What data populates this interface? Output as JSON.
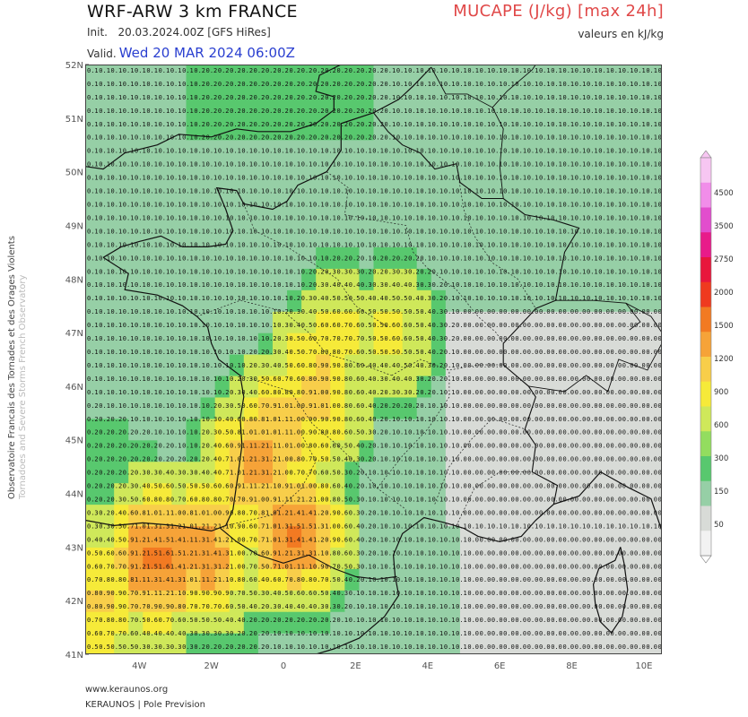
{
  "header": {
    "model_title": "WRF-ARW 3 km FRANCE",
    "init_label": "Init.",
    "init_value": "20.03.2024.00Z [GFS HiRes]",
    "valid_label": "Valid.",
    "valid_value": "Wed 20 MAR 2024 06:00Z",
    "parameter": "MUCAPE (J/kg) [max 24h]",
    "units_note": "valeurs en kJ/kg"
  },
  "axes": {
    "lat_labels": [
      "52N",
      "51N",
      "50N",
      "49N",
      "48N",
      "47N",
      "46N",
      "45N",
      "44N",
      "43N",
      "42N",
      "41N"
    ],
    "lon_labels": [
      "4W",
      "2W",
      "0",
      "2E",
      "4E",
      "6E",
      "8E",
      "10E"
    ],
    "lon_ticks": [
      "5.5W",
      "4W",
      "2W",
      "0",
      "2E",
      "4E",
      "6E",
      "8E",
      "10E",
      "10.5E"
    ]
  },
  "legend": {
    "ticks": [
      "4500",
      "3500",
      "2750",
      "2000",
      "1500",
      "1200",
      "900",
      "600",
      "300",
      "150",
      "50"
    ],
    "colors": [
      "#f7c6f2",
      "#f18de9",
      "#e24dcd",
      "#e81b8a",
      "#e8163c",
      "#ef3a1f",
      "#f27a22",
      "#f6a338",
      "#f8ce4a",
      "#f6ea39",
      "#cfe85a",
      "#93dd5f",
      "#58c86e",
      "#96cfa6",
      "#d8dbd7",
      "#f2f2f2"
    ]
  },
  "credits": {
    "vertical_line1": "Observatoire Francais des Tornades et des Orages Violents",
    "vertical_line2": "Tornadoes and Severe Storms French Observatory",
    "website": "www.keraunos.org",
    "org": "KERAUNOS | Pole Prevision"
  },
  "map_data": {
    "extent": {
      "lon_min": -5.5,
      "lon_max": 10.5,
      "lat_min": 41,
      "lat_max": 52
    },
    "grid_spacing_deg": 0.4,
    "value_hotspots": [
      {
        "lon": -3.5,
        "lat": 42.8,
        "value": 1.6
      },
      {
        "lon": -2.2,
        "lat": 42.9,
        "value": 1.4
      },
      {
        "lon": -0.8,
        "lat": 44.5,
        "value": 1.3
      },
      {
        "lon": 0.3,
        "lat": 43.3,
        "value": 1.5
      },
      {
        "lon": 0.9,
        "lat": 45.7,
        "value": 1.0
      },
      {
        "lon": -0.1,
        "lat": 45.2,
        "value": 1.1
      },
      {
        "lon": -5.0,
        "lat": 42.0,
        "value": 0.9
      },
      {
        "lon": 1.5,
        "lat": 46.9,
        "value": 0.7
      },
      {
        "lon": 3.0,
        "lat": 47.0,
        "value": 0.6
      },
      {
        "lon": 1.0,
        "lat": 46.3,
        "value": 0.9
      }
    ],
    "value_bands": [
      {
        "min": 0.0,
        "max": 0.05,
        "fill": "#d8dbd7"
      },
      {
        "min": 0.05,
        "max": 0.15,
        "fill": "#96cfa6"
      },
      {
        "min": 0.15,
        "max": 0.3,
        "fill": "#58c86e"
      },
      {
        "min": 0.3,
        "max": 0.6,
        "fill": "#cfe85a"
      },
      {
        "min": 0.6,
        "max": 0.9,
        "fill": "#f6ea39"
      },
      {
        "min": 0.9,
        "max": 1.2,
        "fill": "#f8ce4a"
      },
      {
        "min": 1.2,
        "max": 1.5,
        "fill": "#f6a338"
      },
      {
        "min": 1.5,
        "max": 2.0,
        "fill": "#f27a22"
      }
    ],
    "coastline_lonlat": [
      [
        -5.0,
        48.4
      ],
      [
        -4.5,
        48.6
      ],
      [
        -4.0,
        48.7
      ],
      [
        -3.4,
        48.8
      ],
      [
        -2.8,
        48.6
      ],
      [
        -2.1,
        48.6
      ],
      [
        -1.6,
        48.65
      ],
      [
        -1.4,
        48.9
      ],
      [
        -1.6,
        49.3
      ],
      [
        -1.85,
        49.7
      ],
      [
        -1.3,
        49.65
      ],
      [
        -1.1,
        49.4
      ],
      [
        -0.3,
        49.3
      ],
      [
        0.1,
        49.45
      ],
      [
        0.4,
        49.75
      ],
      [
        1.2,
        50.0
      ],
      [
        1.6,
        50.4
      ],
      [
        1.6,
        50.9
      ],
      [
        2.5,
        51.1
      ],
      [
        2.5,
        51.1
      ],
      [
        3.2,
        51.35
      ],
      [
        3.6,
        51.6
      ],
      [
        4.1,
        51.95
      ]
    ],
    "atlantic_coast_lonlat": [
      [
        -5.0,
        48.4
      ],
      [
        -4.3,
        48.1
      ],
      [
        -4.4,
        47.8
      ],
      [
        -3.5,
        47.7
      ],
      [
        -2.8,
        47.5
      ],
      [
        -2.4,
        47.3
      ],
      [
        -2.1,
        47.1
      ],
      [
        -2.0,
        46.8
      ],
      [
        -1.8,
        46.5
      ],
      [
        -1.2,
        46.2
      ],
      [
        -1.1,
        45.8
      ],
      [
        -1.2,
        45.4
      ],
      [
        -1.15,
        44.9
      ],
      [
        -1.25,
        44.4
      ],
      [
        -1.4,
        43.7
      ],
      [
        -1.6,
        43.4
      ],
      [
        -2.0,
        43.3
      ],
      [
        -3.0,
        43.4
      ],
      [
        -3.9,
        43.45
      ],
      [
        -4.7,
        43.4
      ],
      [
        -5.5,
        43.5
      ]
    ],
    "med_coast_lonlat": [
      [
        3.1,
        42.45
      ],
      [
        3.05,
        42.85
      ],
      [
        3.3,
        43.25
      ],
      [
        3.9,
        43.55
      ],
      [
        4.5,
        43.45
      ],
      [
        5.0,
        43.35
      ],
      [
        5.4,
        43.2
      ],
      [
        6.0,
        43.1
      ],
      [
        6.6,
        43.2
      ],
      [
        7.0,
        43.5
      ],
      [
        7.5,
        43.8
      ],
      [
        8.2,
        43.95
      ],
      [
        8.8,
        44.4
      ],
      [
        9.6,
        44.1
      ],
      [
        10.2,
        43.9
      ],
      [
        10.5,
        43.3
      ]
    ],
    "spain_med_coast_lonlat": [
      [
        3.1,
        42.45
      ],
      [
        3.2,
        42.1
      ],
      [
        2.8,
        41.7
      ],
      [
        2.1,
        41.3
      ],
      [
        1.4,
        41.1
      ],
      [
        0.9,
        41.0
      ]
    ],
    "corsica_lonlat": [
      [
        9.35,
        43.0
      ],
      [
        9.45,
        42.7
      ],
      [
        9.55,
        42.2
      ],
      [
        9.4,
        41.7
      ],
      [
        9.1,
        41.4
      ],
      [
        8.8,
        41.6
      ],
      [
        8.65,
        41.95
      ],
      [
        8.6,
        42.3
      ],
      [
        8.75,
        42.6
      ],
      [
        9.2,
        42.75
      ],
      [
        9.35,
        43.0
      ]
    ],
    "england_coast_lonlat": [
      [
        -5.5,
        50.1
      ],
      [
        -5.0,
        50.05
      ],
      [
        -4.4,
        50.35
      ],
      [
        -3.5,
        50.5
      ],
      [
        -2.9,
        50.7
      ],
      [
        -2.0,
        50.65
      ],
      [
        -1.3,
        50.8
      ],
      [
        -0.7,
        50.75
      ],
      [
        0.2,
        50.75
      ],
      [
        0.9,
        50.9
      ],
      [
        1.4,
        51.15
      ],
      [
        1.4,
        51.4
      ],
      [
        0.9,
        51.5
      ],
      [
        1.0,
        51.8
      ],
      [
        1.6,
        52.0
      ]
    ],
    "france_border_lonlat": [
      [
        2.5,
        51.1
      ],
      [
        2.9,
        50.75
      ],
      [
        3.3,
        50.5
      ],
      [
        3.8,
        50.35
      ],
      [
        4.2,
        50.05
      ],
      [
        4.8,
        50.15
      ],
      [
        4.9,
        49.8
      ],
      [
        5.5,
        49.5
      ],
      [
        6.1,
        49.5
      ],
      [
        6.7,
        49.2
      ],
      [
        7.5,
        49.1
      ],
      [
        8.2,
        48.95
      ],
      [
        7.8,
        48.5
      ],
      [
        7.55,
        47.6
      ],
      [
        7.0,
        47.45
      ],
      [
        6.8,
        47.3
      ],
      [
        6.1,
        46.8
      ],
      [
        6.1,
        46.4
      ],
      [
        6.8,
        46.0
      ],
      [
        7.0,
        45.8
      ],
      [
        6.7,
        45.2
      ],
      [
        7.0,
        44.9
      ],
      [
        6.9,
        44.4
      ],
      [
        7.6,
        44.15
      ],
      [
        7.5,
        43.8
      ]
    ],
    "pyrenees_border_lonlat": [
      [
        -1.75,
        43.35
      ],
      [
        -1.3,
        43.1
      ],
      [
        -0.7,
        42.85
      ],
      [
        0.0,
        42.7
      ],
      [
        0.7,
        42.85
      ],
      [
        1.4,
        42.6
      ],
      [
        2.0,
        42.45
      ],
      [
        2.6,
        42.4
      ],
      [
        3.15,
        42.45
      ]
    ],
    "other_borders_lonlat": [
      [
        [
          4.1,
          51.95
        ],
        [
          4.5,
          51.45
        ],
        [
          5.1,
          51.45
        ],
        [
          5.8,
          51.2
        ],
        [
          6.1,
          50.8
        ],
        [
          6.0,
          50.1
        ],
        [
          6.1,
          49.5
        ]
      ],
      [
        [
          5.8,
          51.2
        ],
        [
          6.2,
          51.5
        ],
        [
          6.9,
          51.9
        ],
        [
          7.0,
          52.0
        ]
      ],
      [
        [
          7.55,
          47.6
        ],
        [
          8.6,
          47.6
        ],
        [
          9.5,
          47.55
        ],
        [
          10.2,
          47.3
        ],
        [
          10.5,
          47.0
        ]
      ],
      [
        [
          6.8,
          46.0
        ],
        [
          7.8,
          45.9
        ],
        [
          8.4,
          46.2
        ],
        [
          9.0,
          45.9
        ],
        [
          9.3,
          46.5
        ],
        [
          10.1,
          46.3
        ],
        [
          10.5,
          46.8
        ]
      ],
      [
        [
          9.5,
          47.55
        ],
        [
          9.9,
          47.2
        ],
        [
          9.6,
          47.05
        ]
      ]
    ],
    "region_borders_lonlat": [
      [
        [
          1.2,
          50.0
        ],
        [
          1.8,
          49.7
        ],
        [
          1.7,
          49.2
        ],
        [
          2.5,
          49.1
        ],
        [
          3.4,
          49.0
        ],
        [
          3.6,
          48.5
        ],
        [
          4.0,
          48.2
        ]
      ],
      [
        [
          -1.1,
          49.4
        ],
        [
          -0.8,
          48.9
        ],
        [
          0.1,
          48.6
        ],
        [
          0.8,
          48.3
        ],
        [
          1.5,
          48.0
        ],
        [
          2.0,
          47.5
        ],
        [
          2.9,
          47.1
        ]
      ],
      [
        [
          -2.4,
          47.3
        ],
        [
          -1.2,
          47.6
        ],
        [
          0.0,
          47.4
        ],
        [
          0.7,
          47.0
        ],
        [
          1.2,
          46.6
        ],
        [
          2.2,
          46.4
        ],
        [
          3.0,
          46.2
        ]
      ],
      [
        [
          -1.2,
          46.2
        ],
        [
          0.2,
          45.9
        ],
        [
          0.8,
          45.3
        ],
        [
          1.5,
          44.9
        ],
        [
          2.1,
          44.5
        ],
        [
          2.6,
          44.1
        ],
        [
          3.4,
          43.7
        ]
      ],
      [
        [
          -1.6,
          43.4
        ],
        [
          -0.3,
          43.6
        ],
        [
          0.5,
          44.1
        ],
        [
          0.9,
          44.6
        ],
        [
          0.5,
          45.1
        ]
      ],
      [
        [
          3.0,
          46.2
        ],
        [
          3.8,
          46.5
        ],
        [
          4.6,
          46.3
        ],
        [
          5.4,
          46.4
        ],
        [
          6.1,
          46.4
        ]
      ],
      [
        [
          4.0,
          48.2
        ],
        [
          4.8,
          47.8
        ],
        [
          5.4,
          47.3
        ],
        [
          5.9,
          47.0
        ],
        [
          6.1,
          46.8
        ]
      ],
      [
        [
          4.8,
          50.15
        ],
        [
          5.0,
          49.3
        ],
        [
          5.3,
          48.8
        ],
        [
          5.8,
          48.3
        ],
        [
          6.5,
          48.0
        ],
        [
          7.0,
          47.45
        ]
      ],
      [
        [
          4.2,
          43.8
        ],
        [
          4.6,
          44.5
        ],
        [
          5.2,
          45.0
        ],
        [
          5.8,
          45.4
        ],
        [
          6.7,
          45.2
        ]
      ],
      [
        [
          2.6,
          44.1
        ],
        [
          3.3,
          44.7
        ],
        [
          4.0,
          45.2
        ],
        [
          4.6,
          45.8
        ],
        [
          4.6,
          46.3
        ]
      ],
      [
        [
          4.8,
          43.4
        ],
        [
          5.3,
          44.1
        ],
        [
          6.0,
          44.4
        ],
        [
          6.9,
          44.4
        ]
      ]
    ]
  }
}
